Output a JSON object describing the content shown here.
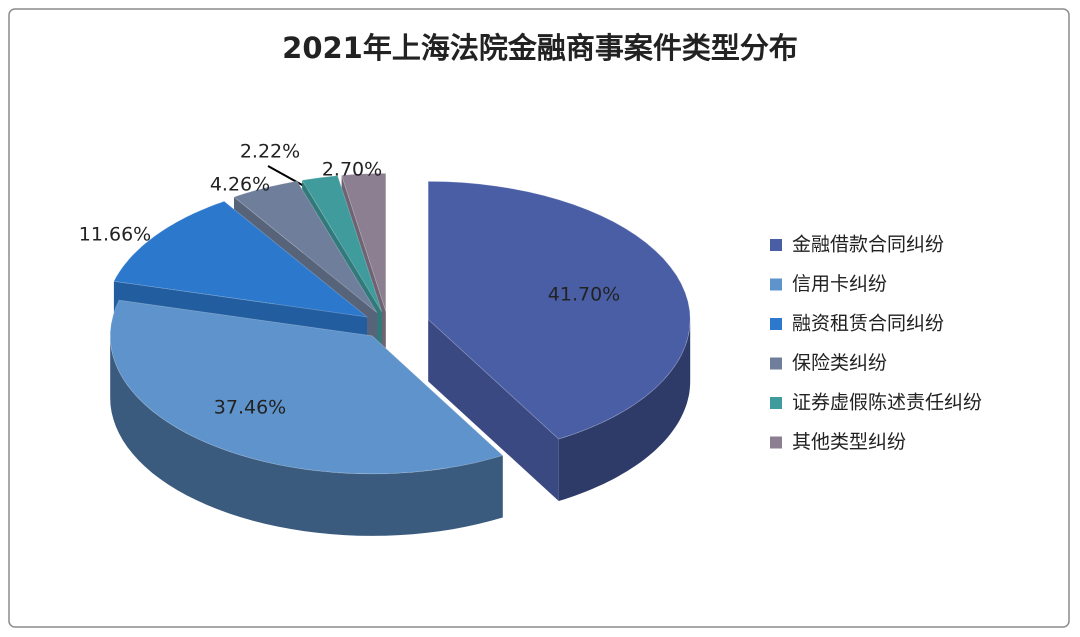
{
  "chart_data": {
    "type": "pie3d",
    "title": "2021年上海法院金融商事案件类型分布",
    "categories": [
      "金融借款合同纠纷",
      "信用卡纠纷",
      "融资租赁合同纠纷",
      "保险类纠纷",
      "证券虚假陈述责任纠纷",
      "其他类型纠纷"
    ],
    "values": [
      41.7,
      37.46,
      11.66,
      4.26,
      2.22,
      2.7
    ],
    "value_labels": [
      "41.70%",
      "37.46%",
      "11.66%",
      "4.26%",
      "2.22%",
      "2.70%"
    ],
    "colors": [
      "#4a5ea6",
      "#5e93cb",
      "#2b78cc",
      "#6f7f9b",
      "#3f9b9c",
      "#8d7f92"
    ],
    "legend": "right"
  }
}
